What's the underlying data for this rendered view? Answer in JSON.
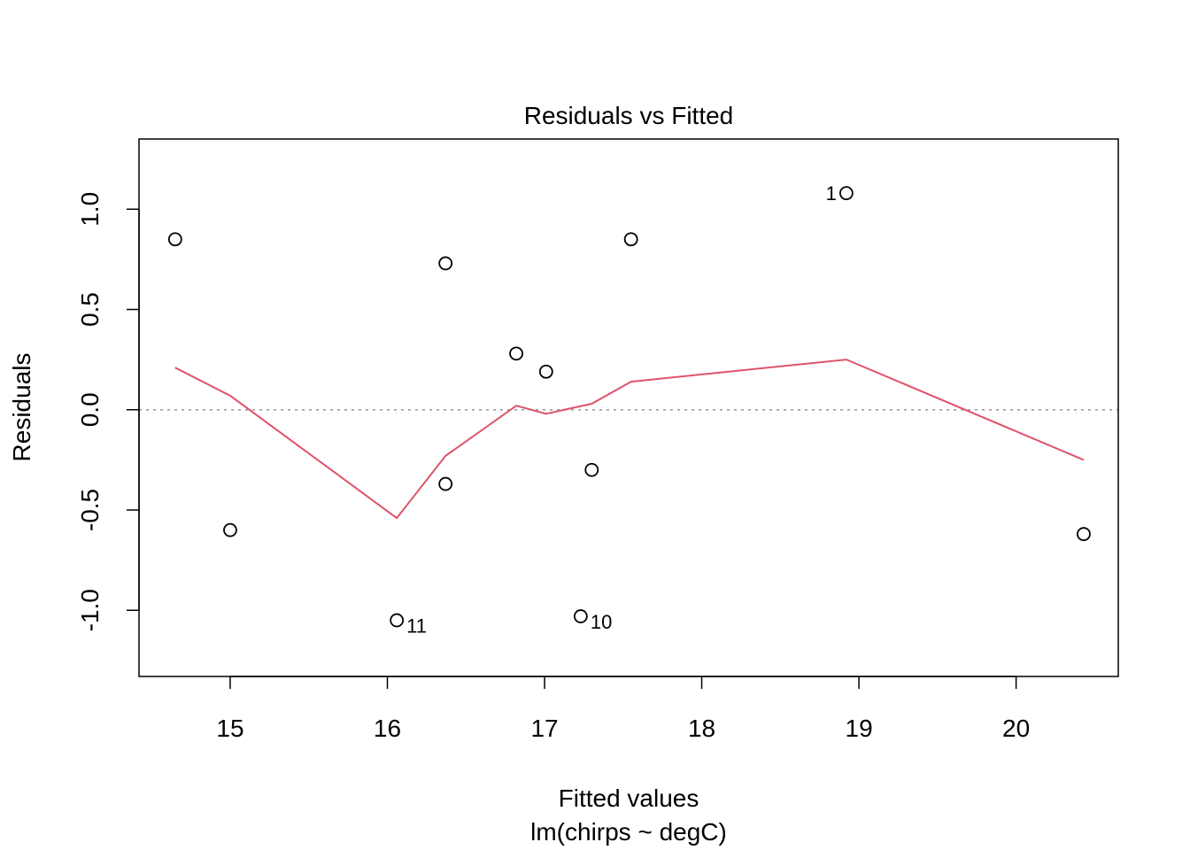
{
  "chart_data": {
    "type": "scatter",
    "title": "Residuals vs Fitted",
    "xlabel": "Fitted values",
    "subtitle": "lm(chirps ~ degC)",
    "ylabel": "Residuals",
    "xlim": [
      14.42,
      20.65
    ],
    "ylim": [
      -1.33,
      1.35
    ],
    "xticks": [
      "15",
      "16",
      "17",
      "18",
      "19",
      "20"
    ],
    "yticks": [
      "-1.0",
      "-0.5",
      "0.0",
      "0.5",
      "1.0"
    ],
    "points": [
      {
        "x": 14.65,
        "y": 0.85,
        "label": ""
      },
      {
        "x": 15.0,
        "y": -0.6,
        "label": ""
      },
      {
        "x": 16.06,
        "y": -1.05,
        "label": "11"
      },
      {
        "x": 16.37,
        "y": 0.73,
        "label": ""
      },
      {
        "x": 16.37,
        "y": -0.37,
        "label": ""
      },
      {
        "x": 16.82,
        "y": 0.28,
        "label": ""
      },
      {
        "x": 17.01,
        "y": 0.19,
        "label": ""
      },
      {
        "x": 17.23,
        "y": -1.03,
        "label": "10"
      },
      {
        "x": 17.3,
        "y": -0.3,
        "label": ""
      },
      {
        "x": 17.55,
        "y": 0.85,
        "label": ""
      },
      {
        "x": 18.92,
        "y": 1.08,
        "label": "1"
      },
      {
        "x": 20.43,
        "y": -0.62,
        "label": ""
      }
    ],
    "smooth": {
      "x": [
        14.65,
        15.0,
        16.06,
        16.37,
        16.82,
        17.01,
        17.3,
        17.55,
        18.92,
        20.43
      ],
      "y": [
        0.21,
        0.07,
        -0.54,
        -0.23,
        0.02,
        -0.02,
        0.03,
        0.14,
        0.25,
        -0.25
      ]
    },
    "reference_line_y": 0,
    "colors": {
      "smooth": "#DF536B",
      "reference": "#9E9E9E",
      "points": "#000000"
    }
  }
}
